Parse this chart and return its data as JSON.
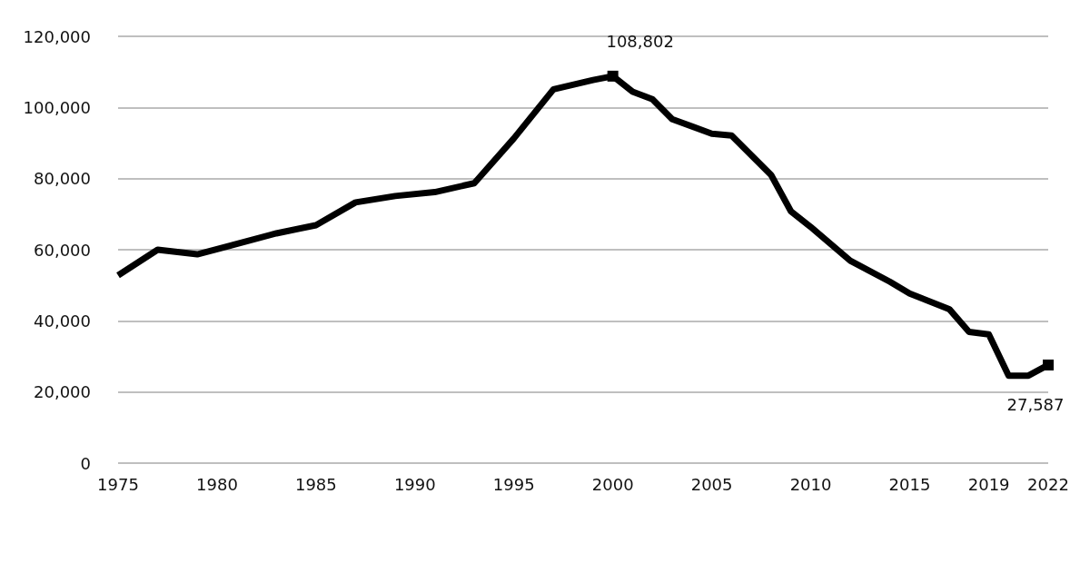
{
  "chart_data": {
    "type": "line",
    "x": [
      1975,
      1977,
      1979,
      1983,
      1985,
      1987,
      1989,
      1991,
      1993,
      1995,
      1997,
      1999,
      2000,
      2001,
      2002,
      2003,
      2005,
      2006,
      2008,
      2009,
      2010,
      2012,
      2014,
      2015,
      2017,
      2018,
      2019,
      2020,
      2021,
      2022
    ],
    "series": [
      {
        "color": "#000000",
        "values": [
          52800,
          60000,
          58700,
          64600,
          66900,
          73300,
          75100,
          76200,
          78700,
          91300,
          105100,
          107700,
          108802,
          104400,
          102300,
          96700,
          92600,
          92100,
          81000,
          70800,
          66400,
          56900,
          51000,
          47700,
          43300,
          36900,
          36200,
          24600,
          24600,
          27587
        ]
      }
    ],
    "xlim": [
      1975,
      2022
    ],
    "xticks": [
      1975,
      1980,
      1985,
      1990,
      1995,
      2000,
      2005,
      2010,
      2015,
      2019,
      2022
    ],
    "ylim": [
      0,
      120000
    ],
    "yticks": [
      0,
      {
        "value": 20000,
        "label": "20,000"
      },
      {
        "value": 40000,
        "label": "40,000"
      },
      {
        "value": 60000,
        "label": "60,000"
      },
      {
        "value": 80000,
        "label": "80,000"
      },
      {
        "value": 100000,
        "label": "100,000"
      },
      {
        "value": 120000,
        "label": "120,000"
      }
    ],
    "grid": "y",
    "marker": "none",
    "line_style": "solid",
    "annotations": [
      {
        "text": "108,802",
        "x": 2000,
        "y": 108802
      },
      {
        "text": "27,587",
        "x": 2022,
        "y": 27587
      }
    ]
  }
}
